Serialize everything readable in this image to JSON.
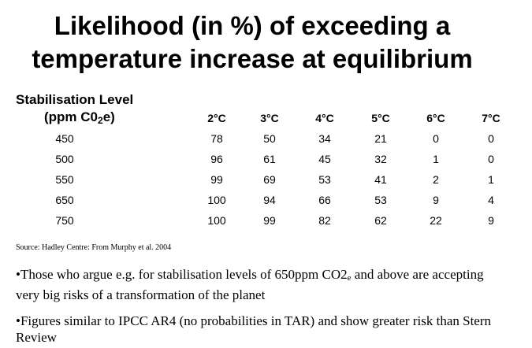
{
  "title": {
    "line1": "Likelihood (in %) of exceeding a",
    "line2": "temperature increase at equilibrium"
  },
  "table": {
    "header_line1": "Stabilisation Level",
    "header_line2_pre": "(ppm C0",
    "header_line2_sub": "2",
    "header_line2_post": "e)",
    "columns": [
      "2°C",
      "3°C",
      "4°C",
      "5°C",
      "6°C",
      "7°C"
    ],
    "rows": [
      {
        "level": "450",
        "values": [
          "78",
          "50",
          "34",
          "21",
          "0",
          "0"
        ]
      },
      {
        "level": "500",
        "values": [
          "96",
          "61",
          "45",
          "32",
          "1",
          "0"
        ]
      },
      {
        "level": "550",
        "values": [
          "99",
          "69",
          "53",
          "41",
          "2",
          "1"
        ]
      },
      {
        "level": "650",
        "values": [
          "100",
          "94",
          "66",
          "53",
          "9",
          "4"
        ]
      },
      {
        "level": "750",
        "values": [
          "100",
          "99",
          "82",
          "62",
          "22",
          "9"
        ]
      }
    ]
  },
  "source": "Source: Hadley Centre: From Murphy et al. 2004",
  "bullets": {
    "b1_pre": "•Those who argue e.g. for stabilisation levels of 650ppm CO2",
    "b1_sub": "e",
    "b1_post": " and above are accepting very big risks of a transformation of the planet",
    "b2": "•Figures similar to IPCC AR4 (no probabilities in TAR) and show greater risk than Stern Review"
  }
}
